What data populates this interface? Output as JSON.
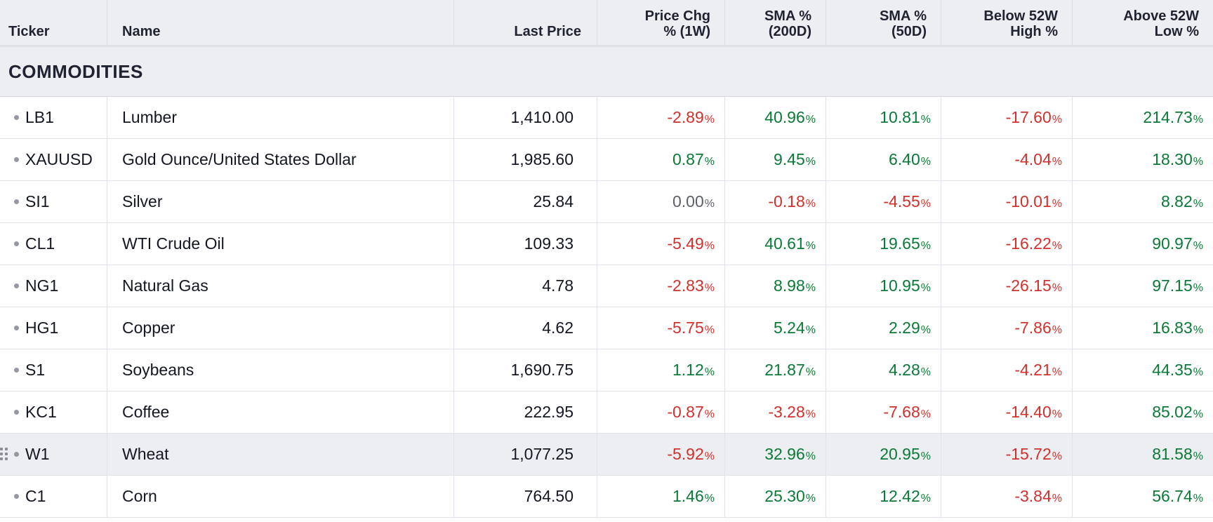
{
  "headers": {
    "ticker": "Ticker",
    "name": "Name",
    "last_price": "Last Price",
    "price_chg_line1": "Price Chg",
    "price_chg_line2": "% (1W)",
    "sma200_line1": "SMA %",
    "sma200_line2": "(200D)",
    "sma50_line1": "SMA %",
    "sma50_line2": "(50D)",
    "below_line1": "Below 52W",
    "below_line2": "High %",
    "above_line1": "Above 52W",
    "above_line2": "Low %"
  },
  "section": {
    "title": "COMMODITIES"
  },
  "pct_sign": "%",
  "colors": {
    "positive": "#0b7a36",
    "negative": "#d1312c",
    "neutral": "#5d606b"
  },
  "rows": [
    {
      "ticker": "LB1",
      "name": "Lumber",
      "last": "1,410.00",
      "chg": "-2.89",
      "sma200": "40.96",
      "sma50": "10.81",
      "below": "-17.60",
      "above": "214.73"
    },
    {
      "ticker": "XAUUSD",
      "name": "Gold Ounce/United States Dollar",
      "last": "1,985.60",
      "chg": "0.87",
      "sma200": "9.45",
      "sma50": "6.40",
      "below": "-4.04",
      "above": "18.30"
    },
    {
      "ticker": "SI1",
      "name": "Silver",
      "last": "25.84",
      "chg": "0.00",
      "sma200": "-0.18",
      "sma50": "-4.55",
      "below": "-10.01",
      "above": "8.82"
    },
    {
      "ticker": "CL1",
      "name": "WTI Crude Oil",
      "last": "109.33",
      "chg": "-5.49",
      "sma200": "40.61",
      "sma50": "19.65",
      "below": "-16.22",
      "above": "90.97"
    },
    {
      "ticker": "NG1",
      "name": "Natural Gas",
      "last": "4.78",
      "chg": "-2.83",
      "sma200": "8.98",
      "sma50": "10.95",
      "below": "-26.15",
      "above": "97.15"
    },
    {
      "ticker": "HG1",
      "name": "Copper",
      "last": "4.62",
      "chg": "-5.75",
      "sma200": "5.24",
      "sma50": "2.29",
      "below": "-7.86",
      "above": "16.83"
    },
    {
      "ticker": "S1",
      "name": "Soybeans",
      "last": "1,690.75",
      "chg": "1.12",
      "sma200": "21.87",
      "sma50": "4.28",
      "below": "-4.21",
      "above": "44.35"
    },
    {
      "ticker": "KC1",
      "name": "Coffee",
      "last": "222.95",
      "chg": "-0.87",
      "sma200": "-3.28",
      "sma50": "-7.68",
      "below": "-14.40",
      "above": "85.02"
    },
    {
      "ticker": "W1",
      "name": "Wheat",
      "last": "1,077.25",
      "chg": "-5.92",
      "sma200": "32.96",
      "sma50": "20.95",
      "below": "-15.72",
      "above": "81.58",
      "hovered": true
    },
    {
      "ticker": "C1",
      "name": "Corn",
      "last": "764.50",
      "chg": "1.46",
      "sma200": "25.30",
      "sma50": "12.42",
      "below": "-3.84",
      "above": "56.74"
    }
  ]
}
